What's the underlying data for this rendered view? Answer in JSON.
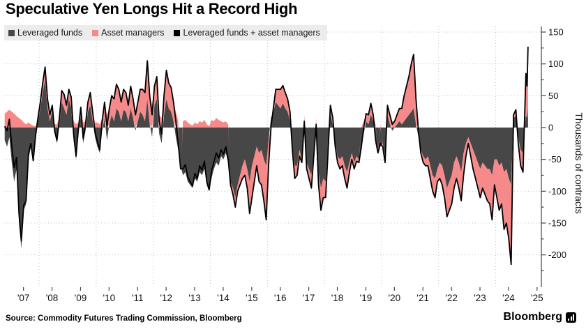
{
  "title": "Speculative Yen Longs Hit a Record High",
  "source": "Source: Commodity Futures Trading Commission, Bloomberg",
  "branding": {
    "wordmark": "Bloomberg",
    "icon": "bloomberg-terminal-icon"
  },
  "legend": {
    "position": "top-left",
    "items": [
      {
        "label": "Leveraged funds",
        "color": "#474747"
      },
      {
        "label": "Asset managers",
        "color": "#f6898a"
      },
      {
        "label": "Leveraged funds + asset managers",
        "color": "#000000"
      }
    ]
  },
  "chart_data": {
    "type": "area",
    "title": "Speculative Yen Longs Hit a Record High",
    "xlabel": "",
    "ylabel": "Thousands of contracts",
    "unit": "thousands of contracts",
    "ylim": [
      -248,
      158
    ],
    "yticks": [
      150,
      100,
      50,
      0,
      -50,
      -100,
      -150,
      -200
    ],
    "ytick_minor": [
      125,
      75,
      25,
      -25,
      -75,
      -125,
      -175,
      -225
    ],
    "xtick_labels": [
      "'07",
      "'08",
      "'09",
      "'10",
      "'11",
      "'12",
      "'13",
      "'14",
      "'15",
      "'16",
      "'17",
      "'18",
      "'19",
      "'20",
      "'21",
      "'22",
      "'23",
      "'24",
      "'25"
    ],
    "xtick_years": [
      2007,
      2008,
      2009,
      2010,
      2011,
      2012,
      2013,
      2014,
      2015,
      2016,
      2017,
      2018,
      2019,
      2020,
      2021,
      2022,
      2023,
      2024,
      2025
    ],
    "grid": {
      "horizontal": "dotted",
      "vertical": "dotted",
      "vertical_years": [
        2008,
        2010,
        2012,
        2014,
        2016,
        2018,
        2020,
        2022,
        2024
      ]
    },
    "legend_position": "top-left",
    "x_monthly_start": 2006.7917,
    "x_monthly_step_years": 0.083333,
    "series": [
      {
        "name": "Leveraged funds",
        "color": "#474747",
        "monthly_values": [
          -20,
          -30,
          -15,
          -55,
          -85,
          -65,
          -150,
          -190,
          -130,
          -120,
          -50,
          -30,
          -55,
          -15,
          10,
          30,
          55,
          75,
          30,
          10,
          25,
          -10,
          -25,
          5,
          40,
          30,
          20,
          45,
          30,
          -20,
          -50,
          -10,
          20,
          -25,
          -5,
          25,
          35,
          10,
          -15,
          -30,
          -40,
          -5,
          15,
          -20,
          5,
          20,
          10,
          30,
          25,
          10,
          28,
          25,
          10,
          30,
          15,
          -5,
          10,
          25,
          20,
          10,
          45,
          5,
          -15,
          35,
          45,
          -10,
          -25,
          20,
          45,
          30,
          25,
          10,
          -15,
          -35,
          -60,
          -75,
          -70,
          -85,
          -90,
          -95,
          -80,
          -85,
          -70,
          -75,
          -65,
          -90,
          -100,
          -80,
          -65,
          -55,
          -60,
          -45,
          -50,
          -40,
          -55,
          -85,
          -95,
          -110,
          -90,
          -75,
          -60,
          -50,
          -65,
          -85,
          -60,
          -45,
          -30,
          -40,
          -35,
          -50,
          -60,
          -20,
          15,
          25,
          40,
          35,
          30,
          38,
          30,
          25,
          10,
          -30,
          -60,
          -60,
          -35,
          -50,
          -10,
          -55,
          -65,
          -75,
          -40,
          -10,
          -70,
          -95,
          -80,
          -85,
          -30,
          20,
          5,
          -25,
          -45,
          -50,
          -45,
          -60,
          -70,
          -55,
          -40,
          -55,
          -45,
          -50,
          -30,
          -10,
          10,
          5,
          20,
          10,
          -25,
          -35,
          -30,
          -25,
          -45,
          20,
          5,
          -5,
          0,
          5,
          10,
          5,
          10,
          15,
          20,
          25,
          30,
          5,
          -15,
          -35,
          -45,
          -50,
          -45,
          -60,
          -75,
          -80,
          -65,
          -55,
          -60,
          -75,
          -95,
          -85,
          -75,
          -55,
          -45,
          -55,
          -70,
          -40,
          -25,
          -15,
          -25,
          -35,
          -45,
          -55,
          -65,
          -55,
          -60,
          -65,
          -65,
          -75,
          -50,
          -50,
          -60,
          -55,
          -70,
          -65,
          -80,
          -90,
          15,
          18,
          -15,
          -35,
          -40
        ],
        "tail_x": [
          2025.02,
          2025.06,
          2025.1,
          2025.135
        ],
        "tail_values": [
          0,
          20,
          15,
          30
        ]
      },
      {
        "name": "Asset managers",
        "color": "#f6898a",
        "monthly_values": [
          22,
          25,
          28,
          25,
          22,
          18,
          15,
          12,
          8,
          5,
          8,
          5,
          3,
          2,
          5,
          10,
          15,
          20,
          15,
          10,
          10,
          5,
          5,
          10,
          18,
          22,
          15,
          15,
          18,
          10,
          5,
          8,
          12,
          8,
          10,
          15,
          20,
          15,
          8,
          8,
          5,
          15,
          25,
          20,
          25,
          30,
          35,
          38,
          35,
          30,
          32,
          30,
          25,
          35,
          30,
          25,
          30,
          35,
          40,
          45,
          60,
          45,
          35,
          30,
          35,
          20,
          15,
          30,
          45,
          40,
          38,
          30,
          25,
          10,
          -5,
          10,
          12,
          8,
          5,
          3,
          8,
          5,
          10,
          8,
          12,
          5,
          2,
          12,
          10,
          15,
          12,
          10,
          8,
          10,
          5,
          -5,
          -10,
          -15,
          -10,
          -15,
          -20,
          -25,
          -30,
          -50,
          -50,
          -40,
          -30,
          -45,
          -55,
          -65,
          -85,
          -40,
          -15,
          5,
          20,
          25,
          30,
          28,
          25,
          20,
          15,
          -5,
          -20,
          -15,
          -10,
          -5,
          20,
          -10,
          -15,
          -20,
          -5,
          15,
          -20,
          -35,
          -30,
          -25,
          -10,
          15,
          10,
          -5,
          -10,
          -15,
          -15,
          -20,
          -25,
          -15,
          -10,
          -10,
          -8,
          -5,
          0,
          10,
          12,
          15,
          18,
          10,
          5,
          -5,
          5,
          -5,
          -10,
          15,
          15,
          10,
          10,
          15,
          20,
          25,
          40,
          50,
          60,
          75,
          85,
          40,
          10,
          -5,
          -10,
          -10,
          -15,
          -20,
          -25,
          -30,
          -20,
          -25,
          -30,
          -35,
          -45,
          -45,
          -45,
          -40,
          -35,
          -40,
          -45,
          -35,
          -20,
          -10,
          -20,
          -30,
          -35,
          -40,
          -45,
          -40,
          -45,
          -50,
          -55,
          -70,
          -40,
          -60,
          -70,
          -65,
          -90,
          -85,
          -95,
          -125,
          5,
          10,
          -10,
          -25,
          -30
        ],
        "tail_x": [
          2025.02,
          2025.06,
          2025.1,
          2025.135
        ],
        "tail_values": [
          25,
          65,
          50,
          97
        ]
      },
      {
        "name": "Leveraged funds + asset managers",
        "color": "#000000",
        "derived": "sum_of_first_two_series",
        "peak_value": 127,
        "trough_value": -215
      }
    ]
  }
}
